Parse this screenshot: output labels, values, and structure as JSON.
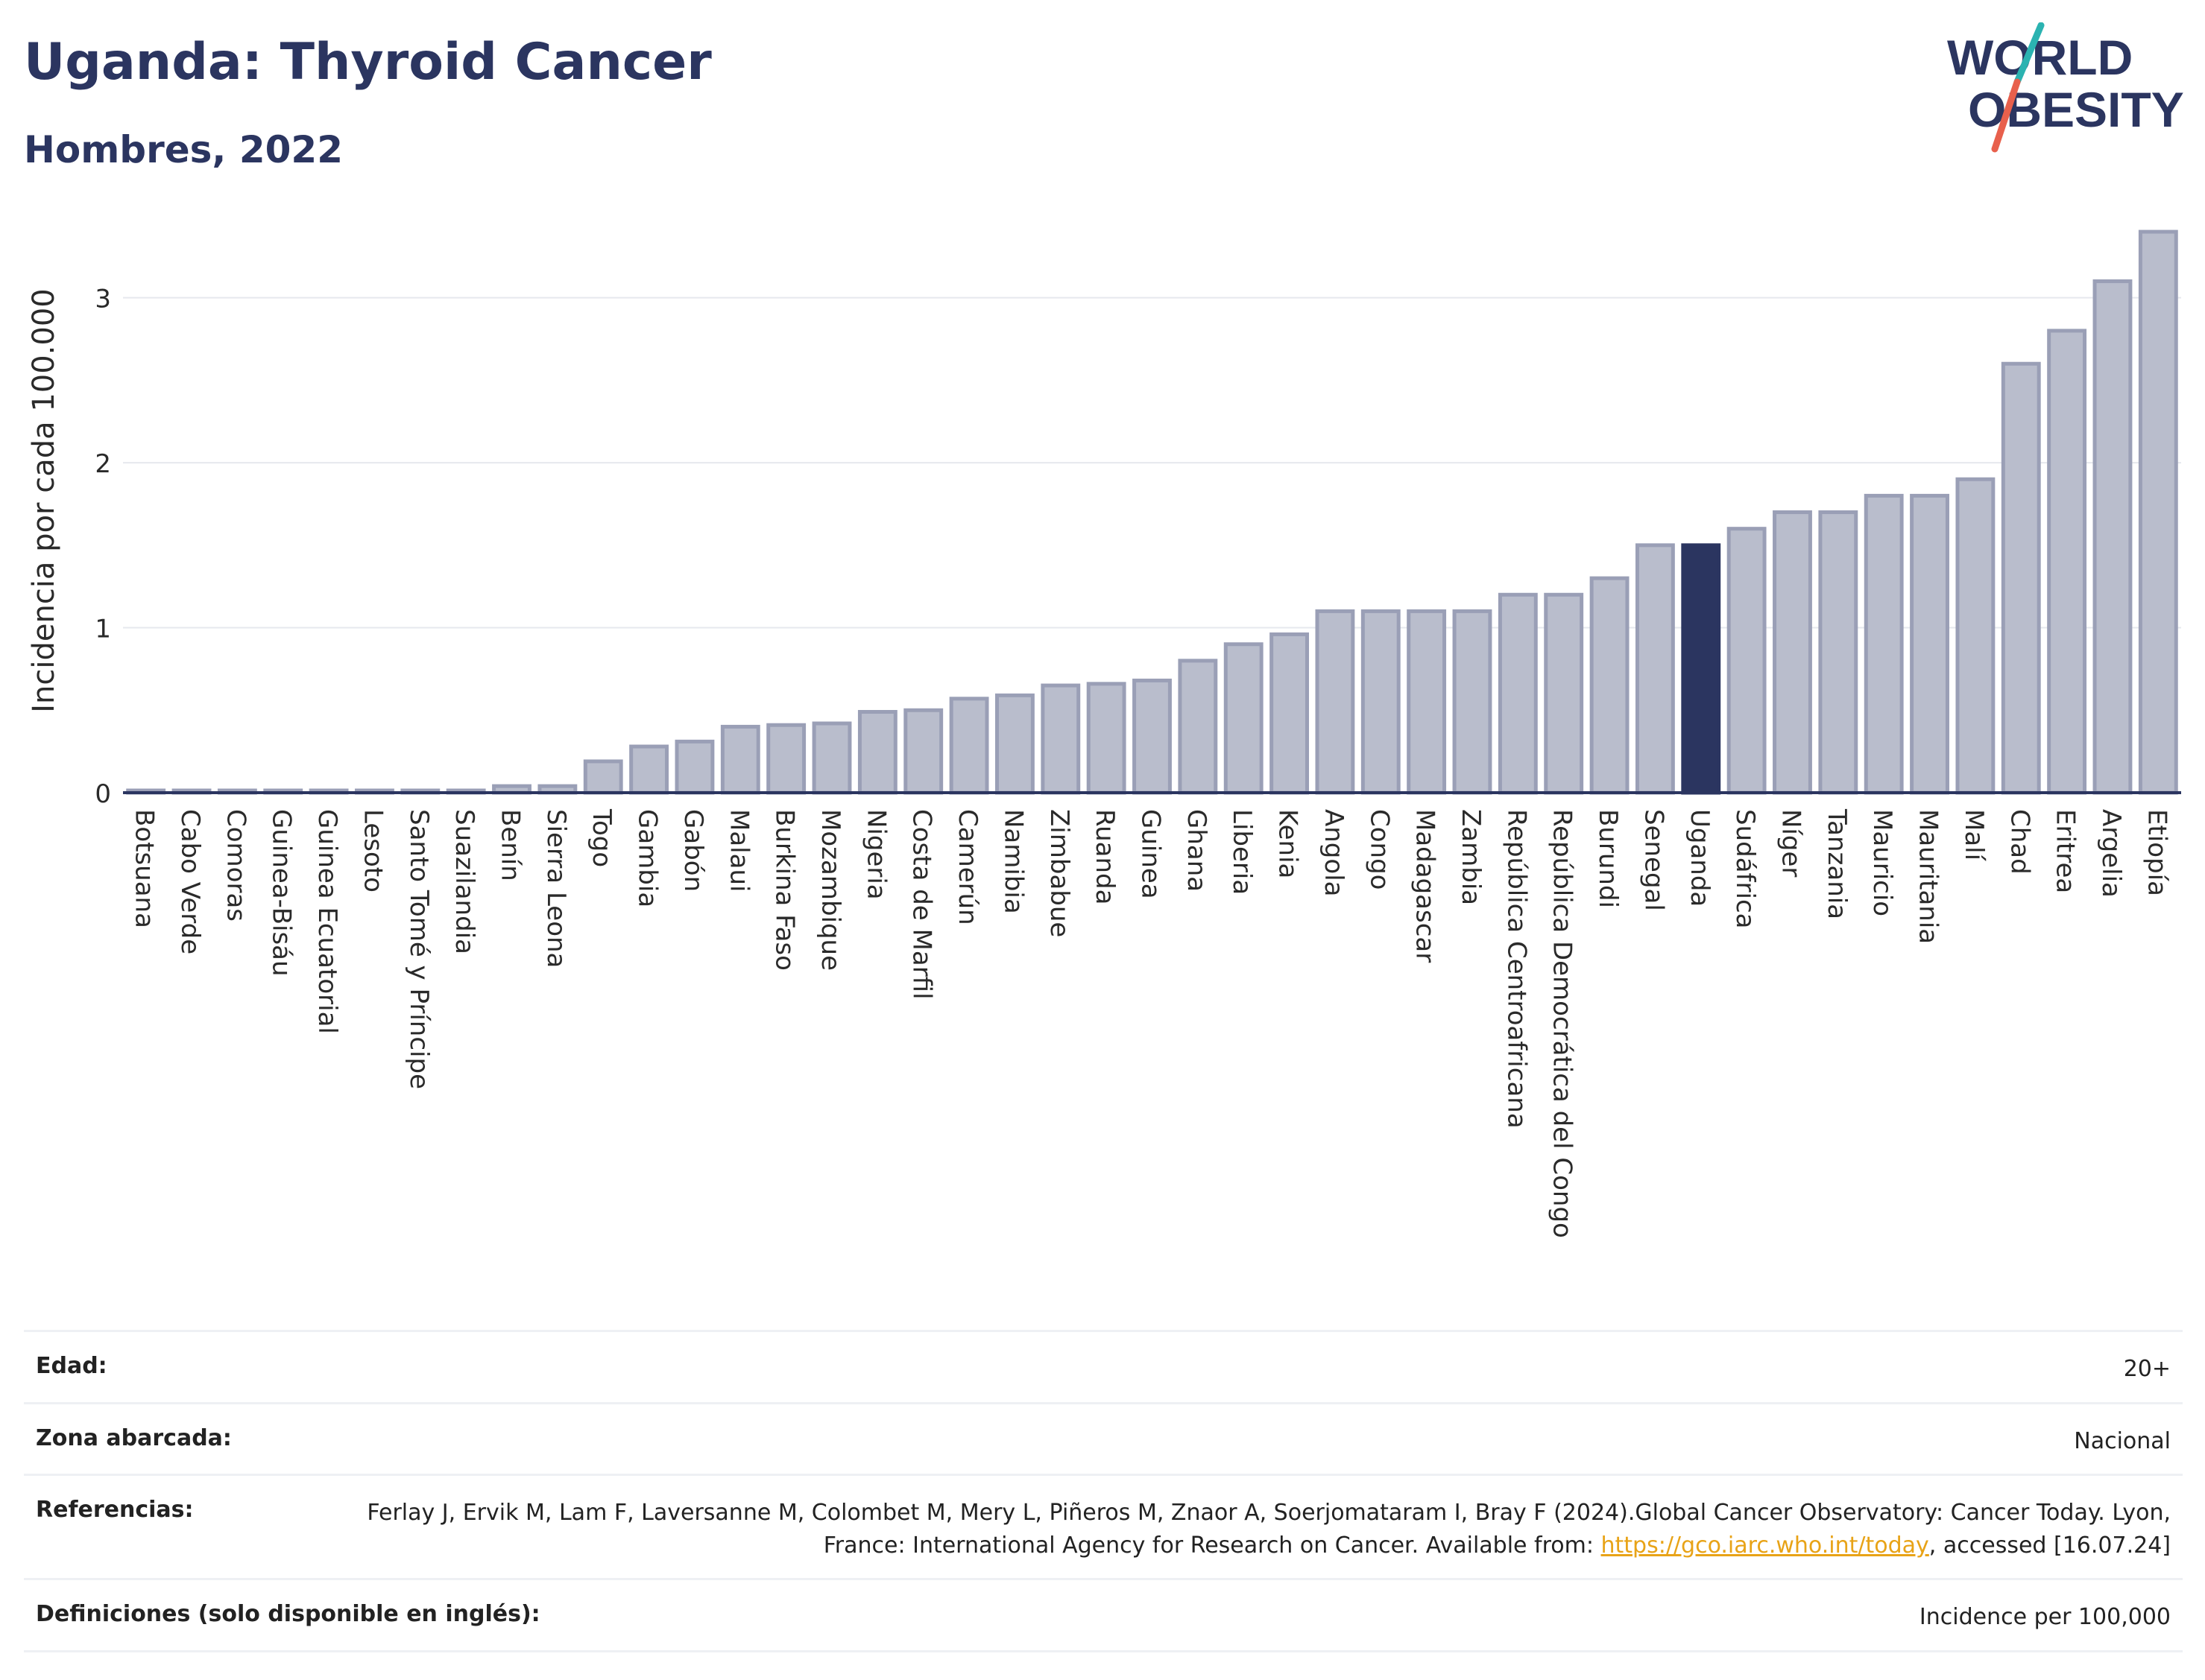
{
  "header": {
    "title": "Uganda: Thyroid Cancer",
    "subtitle": "Hombres, 2022"
  },
  "logo": {
    "line1": "WORLD",
    "line2": "OBESITY",
    "slash_top_color": "#2bb3b1",
    "slash_bottom_color": "#e8604c"
  },
  "chart_data": {
    "type": "bar",
    "ylabel": "Incidencia por cada 100.000",
    "xlabel": "",
    "ylim": [
      0,
      3.45
    ],
    "yticks": [
      0,
      1,
      2,
      3
    ],
    "grid": true,
    "highlight": "Uganda",
    "bar_color": "#b9bdcc",
    "bar_edge_color": "#9a9fb6",
    "highlight_color": "#2b3560",
    "categories": [
      "Botsuana",
      "Cabo Verde",
      "Comoras",
      "Guinea-Bisáu",
      "Guinea Ecuatorial",
      "Lesoto",
      "Santo Tomé y Príncipe",
      "Suazilandia",
      "Benín",
      "Sierra Leona",
      "Togo",
      "Gambia",
      "Gabón",
      "Malaui",
      "Burkina Faso",
      "Mozambique",
      "Nigeria",
      "Costa de Marfil",
      "Camerún",
      "Namibia",
      "Zimbabue",
      "Ruanda",
      "Guinea",
      "Ghana",
      "Liberia",
      "Kenia",
      "Angola",
      "Congo",
      "Madagascar",
      "Zambia",
      "República Centroafricana",
      "República Democrática del Congo",
      "Burundi",
      "Senegal",
      "Uganda",
      "Sudáfrica",
      "Níger",
      "Tanzania",
      "Mauricio",
      "Mauritania",
      "Malí",
      "Chad",
      "Eritrea",
      "Argelia",
      "Etiopía"
    ],
    "values": [
      0,
      0,
      0,
      0,
      0,
      0,
      0,
      0,
      0.04,
      0.04,
      0.19,
      0.28,
      0.31,
      0.4,
      0.41,
      0.42,
      0.49,
      0.5,
      0.57,
      0.59,
      0.65,
      0.66,
      0.68,
      0.8,
      0.9,
      0.96,
      1.1,
      1.1,
      1.1,
      1.1,
      1.2,
      1.2,
      1.3,
      1.5,
      1.5,
      1.6,
      1.7,
      1.7,
      1.8,
      1.8,
      1.9,
      2.6,
      2.8,
      3.1,
      3.4
    ]
  },
  "info": {
    "age_label": "Edad:",
    "age_value": "20+",
    "area_label": "Zona abarcada:",
    "area_value": "Nacional",
    "refs_label": "Referencias:",
    "refs_text_1": "Ferlay J, Ervik M, Lam F, Laversanne M, Colombet M, Mery L, Piñeros M, Znaor A, Soerjomataram I, Bray F (2024).Global Cancer Observatory: Cancer Today. Lyon, France: International Agency for Research on Cancer. Available from: ",
    "refs_link": "https://gco.iarc.who.int/today",
    "refs_text_2": ", accessed [16.07.24]",
    "defs_label": "Definiciones (solo disponible en inglés):",
    "defs_value": "Incidence per 100,000"
  }
}
